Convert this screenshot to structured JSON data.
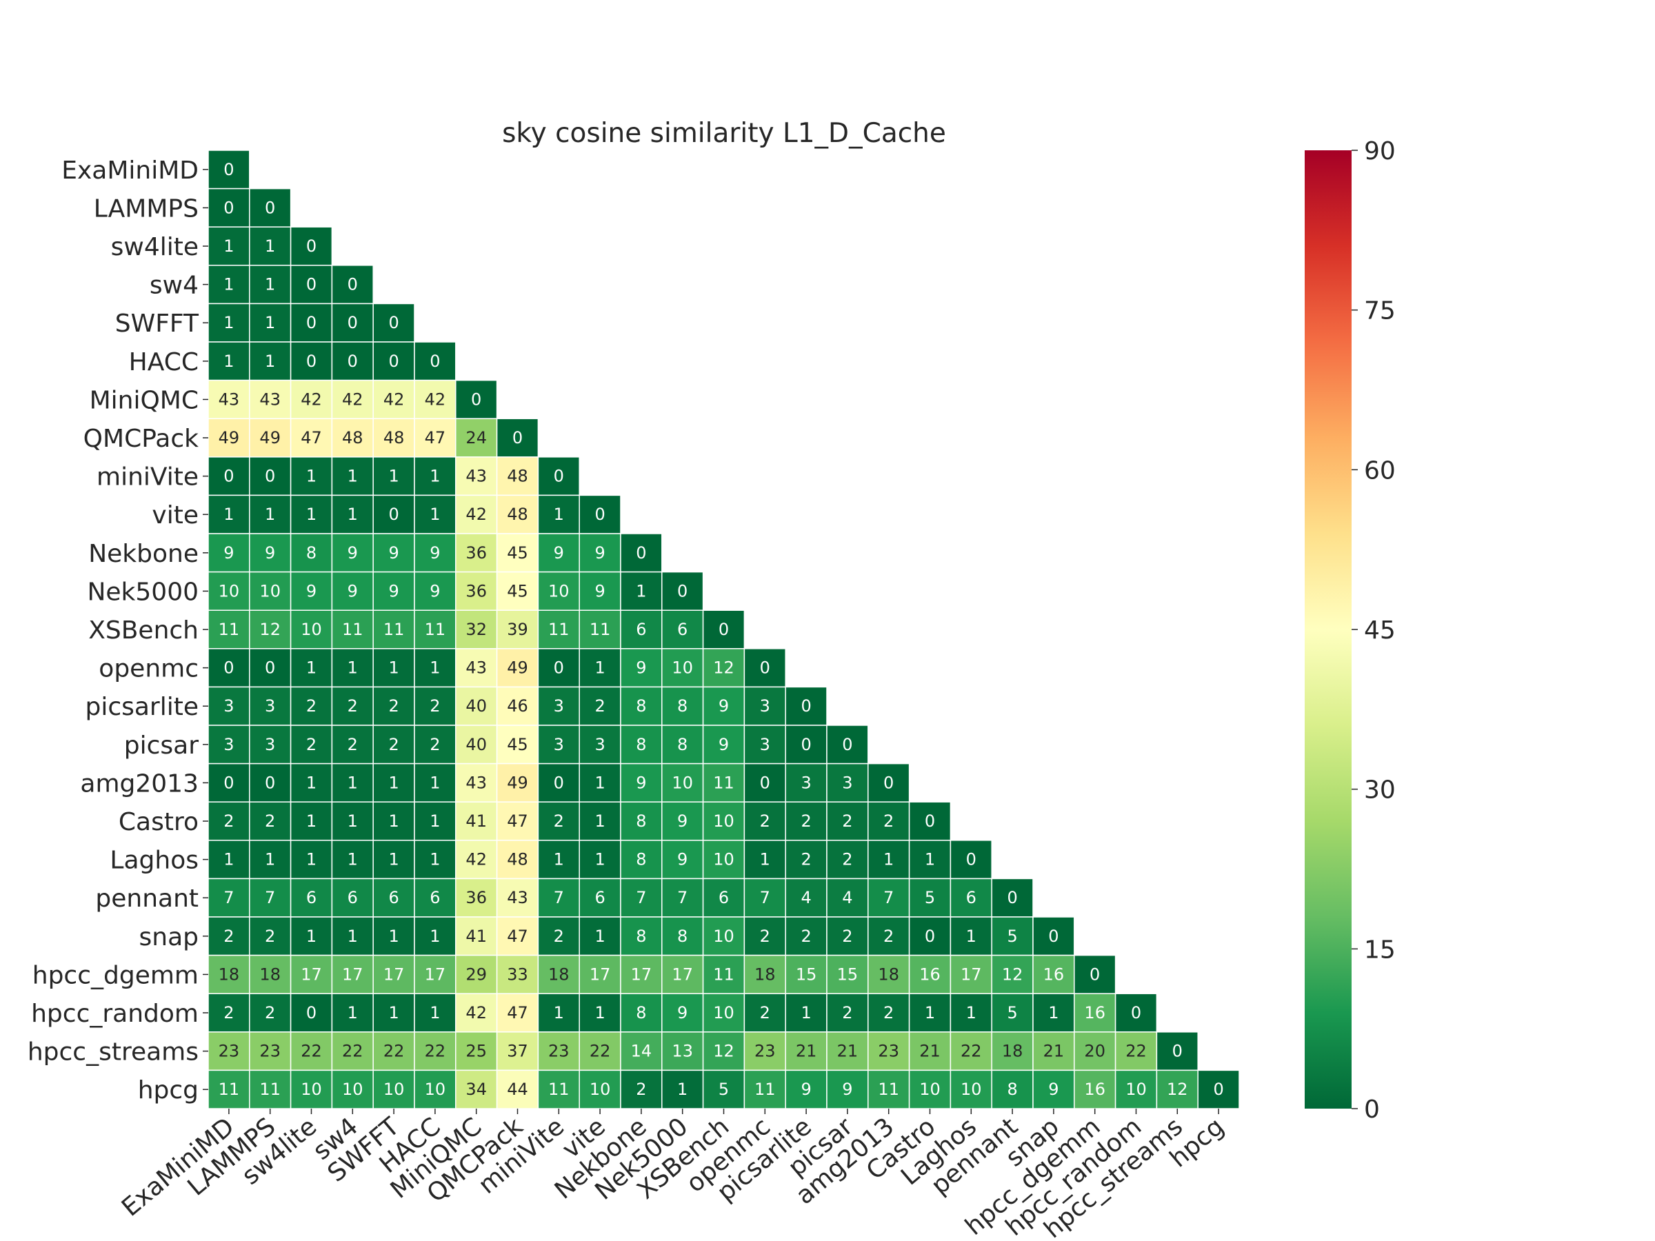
{
  "chart_data": {
    "type": "heatmap",
    "title": "sky cosine similarity L1_D_Cache",
    "labels": [
      "ExaMiniMD",
      "LAMMPS",
      "sw4lite",
      "sw4",
      "SWFFT",
      "HACC",
      "MiniQMC",
      "QMCPack",
      "miniVite",
      "vite",
      "Nekbone",
      "Nek5000",
      "XSBench",
      "openmc",
      "picsarlite",
      "picsar",
      "amg2013",
      "Castro",
      "Laghos",
      "pennant",
      "snap",
      "hpcc_dgemm",
      "hpcc_random",
      "hpcc_streams",
      "hpcg"
    ],
    "values": [
      [
        0
      ],
      [
        0,
        0
      ],
      [
        1,
        1,
        0
      ],
      [
        1,
        1,
        0,
        0
      ],
      [
        1,
        1,
        0,
        0,
        0
      ],
      [
        1,
        1,
        0,
        0,
        0,
        0
      ],
      [
        43,
        43,
        42,
        42,
        42,
        42,
        0
      ],
      [
        49,
        49,
        47,
        48,
        48,
        47,
        24,
        0
      ],
      [
        0,
        0,
        1,
        1,
        1,
        1,
        43,
        48,
        0
      ],
      [
        1,
        1,
        1,
        1,
        0,
        1,
        42,
        48,
        1,
        0
      ],
      [
        9,
        9,
        8,
        9,
        9,
        9,
        36,
        45,
        9,
        9,
        0
      ],
      [
        10,
        10,
        9,
        9,
        9,
        9,
        36,
        45,
        10,
        9,
        1,
        0
      ],
      [
        11,
        12,
        10,
        11,
        11,
        11,
        32,
        39,
        11,
        11,
        6,
        6,
        0
      ],
      [
        0,
        0,
        1,
        1,
        1,
        1,
        43,
        49,
        0,
        1,
        9,
        10,
        12,
        0
      ],
      [
        3,
        3,
        2,
        2,
        2,
        2,
        40,
        46,
        3,
        2,
        8,
        8,
        9,
        3,
        0
      ],
      [
        3,
        3,
        2,
        2,
        2,
        2,
        40,
        45,
        3,
        3,
        8,
        8,
        9,
        3,
        0,
        0
      ],
      [
        0,
        0,
        1,
        1,
        1,
        1,
        43,
        49,
        0,
        1,
        9,
        10,
        11,
        0,
        3,
        3,
        0
      ],
      [
        2,
        2,
        1,
        1,
        1,
        1,
        41,
        47,
        2,
        1,
        8,
        9,
        10,
        2,
        2,
        2,
        2,
        0
      ],
      [
        1,
        1,
        1,
        1,
        1,
        1,
        42,
        48,
        1,
        1,
        8,
        9,
        10,
        1,
        2,
        2,
        1,
        1,
        0
      ],
      [
        7,
        7,
        6,
        6,
        6,
        6,
        36,
        43,
        7,
        6,
        7,
        7,
        6,
        7,
        4,
        4,
        7,
        5,
        6,
        0
      ],
      [
        2,
        2,
        1,
        1,
        1,
        1,
        41,
        47,
        2,
        1,
        8,
        8,
        10,
        2,
        2,
        2,
        2,
        0,
        1,
        5,
        0
      ],
      [
        18,
        18,
        17,
        17,
        17,
        17,
        29,
        33,
        18,
        17,
        17,
        17,
        11,
        18,
        15,
        15,
        18,
        16,
        17,
        12,
        16,
        0
      ],
      [
        2,
        2,
        0,
        1,
        1,
        1,
        42,
        47,
        1,
        1,
        8,
        9,
        10,
        2,
        1,
        2,
        2,
        1,
        1,
        5,
        1,
        16,
        0
      ],
      [
        23,
        23,
        22,
        22,
        22,
        22,
        25,
        37,
        23,
        22,
        14,
        13,
        12,
        23,
        21,
        21,
        23,
        21,
        22,
        18,
        21,
        20,
        22,
        0
      ],
      [
        11,
        11,
        10,
        10,
        10,
        10,
        34,
        44,
        11,
        10,
        2,
        1,
        5,
        11,
        9,
        9,
        11,
        10,
        10,
        8,
        9,
        16,
        10,
        12,
        0
      ]
    ],
    "colorbar": {
      "min": 0,
      "max": 90,
      "ticks": [
        0,
        15,
        30,
        45,
        60,
        75,
        90
      ]
    },
    "colormap": "RdYlGn_r",
    "colormap_stops": [
      "#006837",
      "#1a9850",
      "#66bd63",
      "#a6d96a",
      "#d9ef8b",
      "#ffffbf",
      "#fee08b",
      "#fdae61",
      "#f46d43",
      "#d73027",
      "#a50026"
    ],
    "grid": false,
    "legend": "colorbar-right"
  }
}
